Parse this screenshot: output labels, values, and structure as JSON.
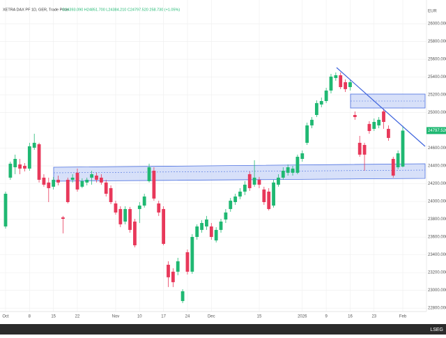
{
  "header": {
    "instrument": "XETRA DAX PF 1D, GER, Trade Price",
    "ohlc": "O24393.090 H24851.700 L24384.210 C24797.520 258.730 (+1.05%)",
    "currency": "EUR",
    "brand": "LSEG"
  },
  "chart_data": {
    "type": "candlestick",
    "categories": [
      "Oct",
      null,
      null,
      null,
      null,
      "8",
      null,
      null,
      null,
      null,
      "15",
      null,
      null,
      null,
      null,
      "22",
      null,
      null,
      null,
      null,
      null,
      null,
      null,
      "Nov",
      null,
      null,
      null,
      null,
      "10",
      null,
      null,
      null,
      null,
      "17",
      null,
      null,
      null,
      null,
      "24",
      null,
      null,
      null,
      null,
      "Dec",
      null,
      null,
      null,
      null,
      null,
      null,
      null,
      null,
      null,
      "15",
      null,
      null,
      null,
      null,
      null,
      null,
      null,
      null,
      "2026",
      null,
      null,
      null,
      null,
      "9",
      null,
      null,
      null,
      null,
      "16",
      null,
      null,
      null,
      null,
      "23",
      null,
      null,
      null,
      null,
      null,
      "Feb"
    ],
    "open": [
      23719,
      24268,
      24385,
      24417,
      24401,
      24370,
      24605,
      24644,
      24268,
      24213,
      24166,
      24244,
      23821,
      24244,
      24244,
      24323,
      24166,
      24213,
      24268,
      24291,
      24268,
      24213,
      24150,
      23978,
      23915,
      23774,
      23915,
      23774,
      23915,
      23954,
      24229,
      24346,
      23978,
      23915,
      23288,
      23210,
      23210,
      22880,
      23429,
      23210,
      23601,
      23680,
      23719,
      23719,
      23562,
      23680,
      23797,
      23915,
      23993,
      24056,
      24111,
      24307,
      24189,
      24244,
      24135,
      24111,
      23954,
      24189,
      24268,
      24323,
      24323,
      24323,
      24479,
      24660,
      24856,
      24973,
      25091,
      25130,
      25248,
      25389,
      25420,
      25342,
      25287,
      24973,
      24660,
      24636,
      24872,
      24817,
      24856,
      25013,
      24817,
      24479,
      24385,
      24393.09
    ],
    "high": [
      24111,
      24448,
      24527,
      24479,
      24432,
      24660,
      24762,
      24660,
      24307,
      24268,
      24276,
      24291,
      23837,
      24268,
      24307,
      24370,
      24260,
      24268,
      24346,
      24323,
      24307,
      24244,
      24181,
      24009,
      23946,
      23946,
      23939,
      23805,
      23993,
      24087,
      24425,
      24385,
      24009,
      23946,
      23327,
      23249,
      23366,
      23013,
      23460,
      23633,
      23743,
      23790,
      23837,
      23758,
      23711,
      23805,
      23915,
      24040,
      24087,
      24150,
      24229,
      24338,
      24464,
      24276,
      24166,
      24150,
      24244,
      24307,
      24385,
      24417,
      24401,
      24527,
      24574,
      24887,
      24950,
      25138,
      25169,
      25279,
      25436,
      25452,
      25452,
      25373,
      25373,
      25013,
      24738,
      24660,
      24903,
      24934,
      24950,
      25044,
      24856,
      24503,
      24574,
      24851.7
    ],
    "low": [
      23695,
      24244,
      24307,
      24307,
      24338,
      24346,
      24581,
      24213,
      24166,
      23993,
      24135,
      24181,
      23641,
      23978,
      24213,
      24111,
      24150,
      24181,
      24189,
      24213,
      24189,
      24056,
      23970,
      23852,
      23711,
      23743,
      23649,
      23484,
      23758,
      23931,
      24213,
      24009,
      23837,
      23507,
      23037,
      23037,
      23170,
      22857,
      23178,
      23186,
      23570,
      23649,
      23680,
      23570,
      23539,
      23649,
      23758,
      23884,
      23962,
      24025,
      24072,
      24119,
      24166,
      24150,
      23962,
      23899,
      23931,
      24166,
      24244,
      24291,
      24291,
      24307,
      24448,
      24636,
      24824,
      24950,
      25060,
      25107,
      25216,
      25358,
      25264,
      25232,
      25248,
      24919,
      24503,
      24346,
      24762,
      24793,
      24824,
      24817,
      24683,
      24268,
      24362,
      24384.21
    ],
    "close": [
      24087,
      24425,
      24479,
      24370,
      24370,
      24621,
      24660,
      24244,
      24189,
      24150,
      24244,
      24213,
      23805,
      23993,
      24268,
      24135,
      24229,
      24244,
      24307,
      24244,
      24213,
      24087,
      23993,
      23876,
      23743,
      23915,
      23680,
      23507,
      23954,
      24056,
      24385,
      24033,
      23876,
      23523,
      23147,
      23092,
      23327,
      22990,
      23210,
      23601,
      23719,
      23758,
      23797,
      23601,
      23680,
      23774,
      23876,
      24009,
      24056,
      24111,
      24189,
      24150,
      24268,
      24189,
      23993,
      23915,
      24213,
      24268,
      24346,
      24385,
      24370,
      24503,
      24542,
      24856,
      24919,
      25107,
      25130,
      25248,
      25405,
      25420,
      25287,
      25264,
      25342,
      24950,
      24527,
      24527,
      24793,
      24895,
      24919,
      24895,
      24715,
      24291,
      24542,
      24797.52
    ],
    "last_price_label": "24797.520",
    "up_color": "#1fb872",
    "down_color": "#e8385a",
    "ylim": [
      22660,
      26110
    ],
    "yticks": [
      {
        "value": 26000,
        "label": "26000.000"
      },
      {
        "value": 25800,
        "label": "25800.000"
      },
      {
        "value": 25600,
        "label": "25600.000"
      },
      {
        "value": 25400,
        "label": "25400.000"
      },
      {
        "value": 25200,
        "label": "25200.000"
      },
      {
        "value": 25000,
        "label": "25000.000"
      },
      {
        "value": 24600,
        "label": "24600.000"
      },
      {
        "value": 24400,
        "label": "24400.000"
      },
      {
        "value": 24200,
        "label": "24200.000"
      },
      {
        "value": 24000,
        "label": "24000.000"
      },
      {
        "value": 23800,
        "label": "23800.000"
      },
      {
        "value": 23600,
        "label": "23600.000"
      },
      {
        "value": 23400,
        "label": "23400.000"
      },
      {
        "value": 23200,
        "label": "23200.000"
      },
      {
        "value": 23000,
        "label": "23000.000"
      },
      {
        "value": 22800,
        "label": "22800.000"
      }
    ],
    "grid": true
  }
}
